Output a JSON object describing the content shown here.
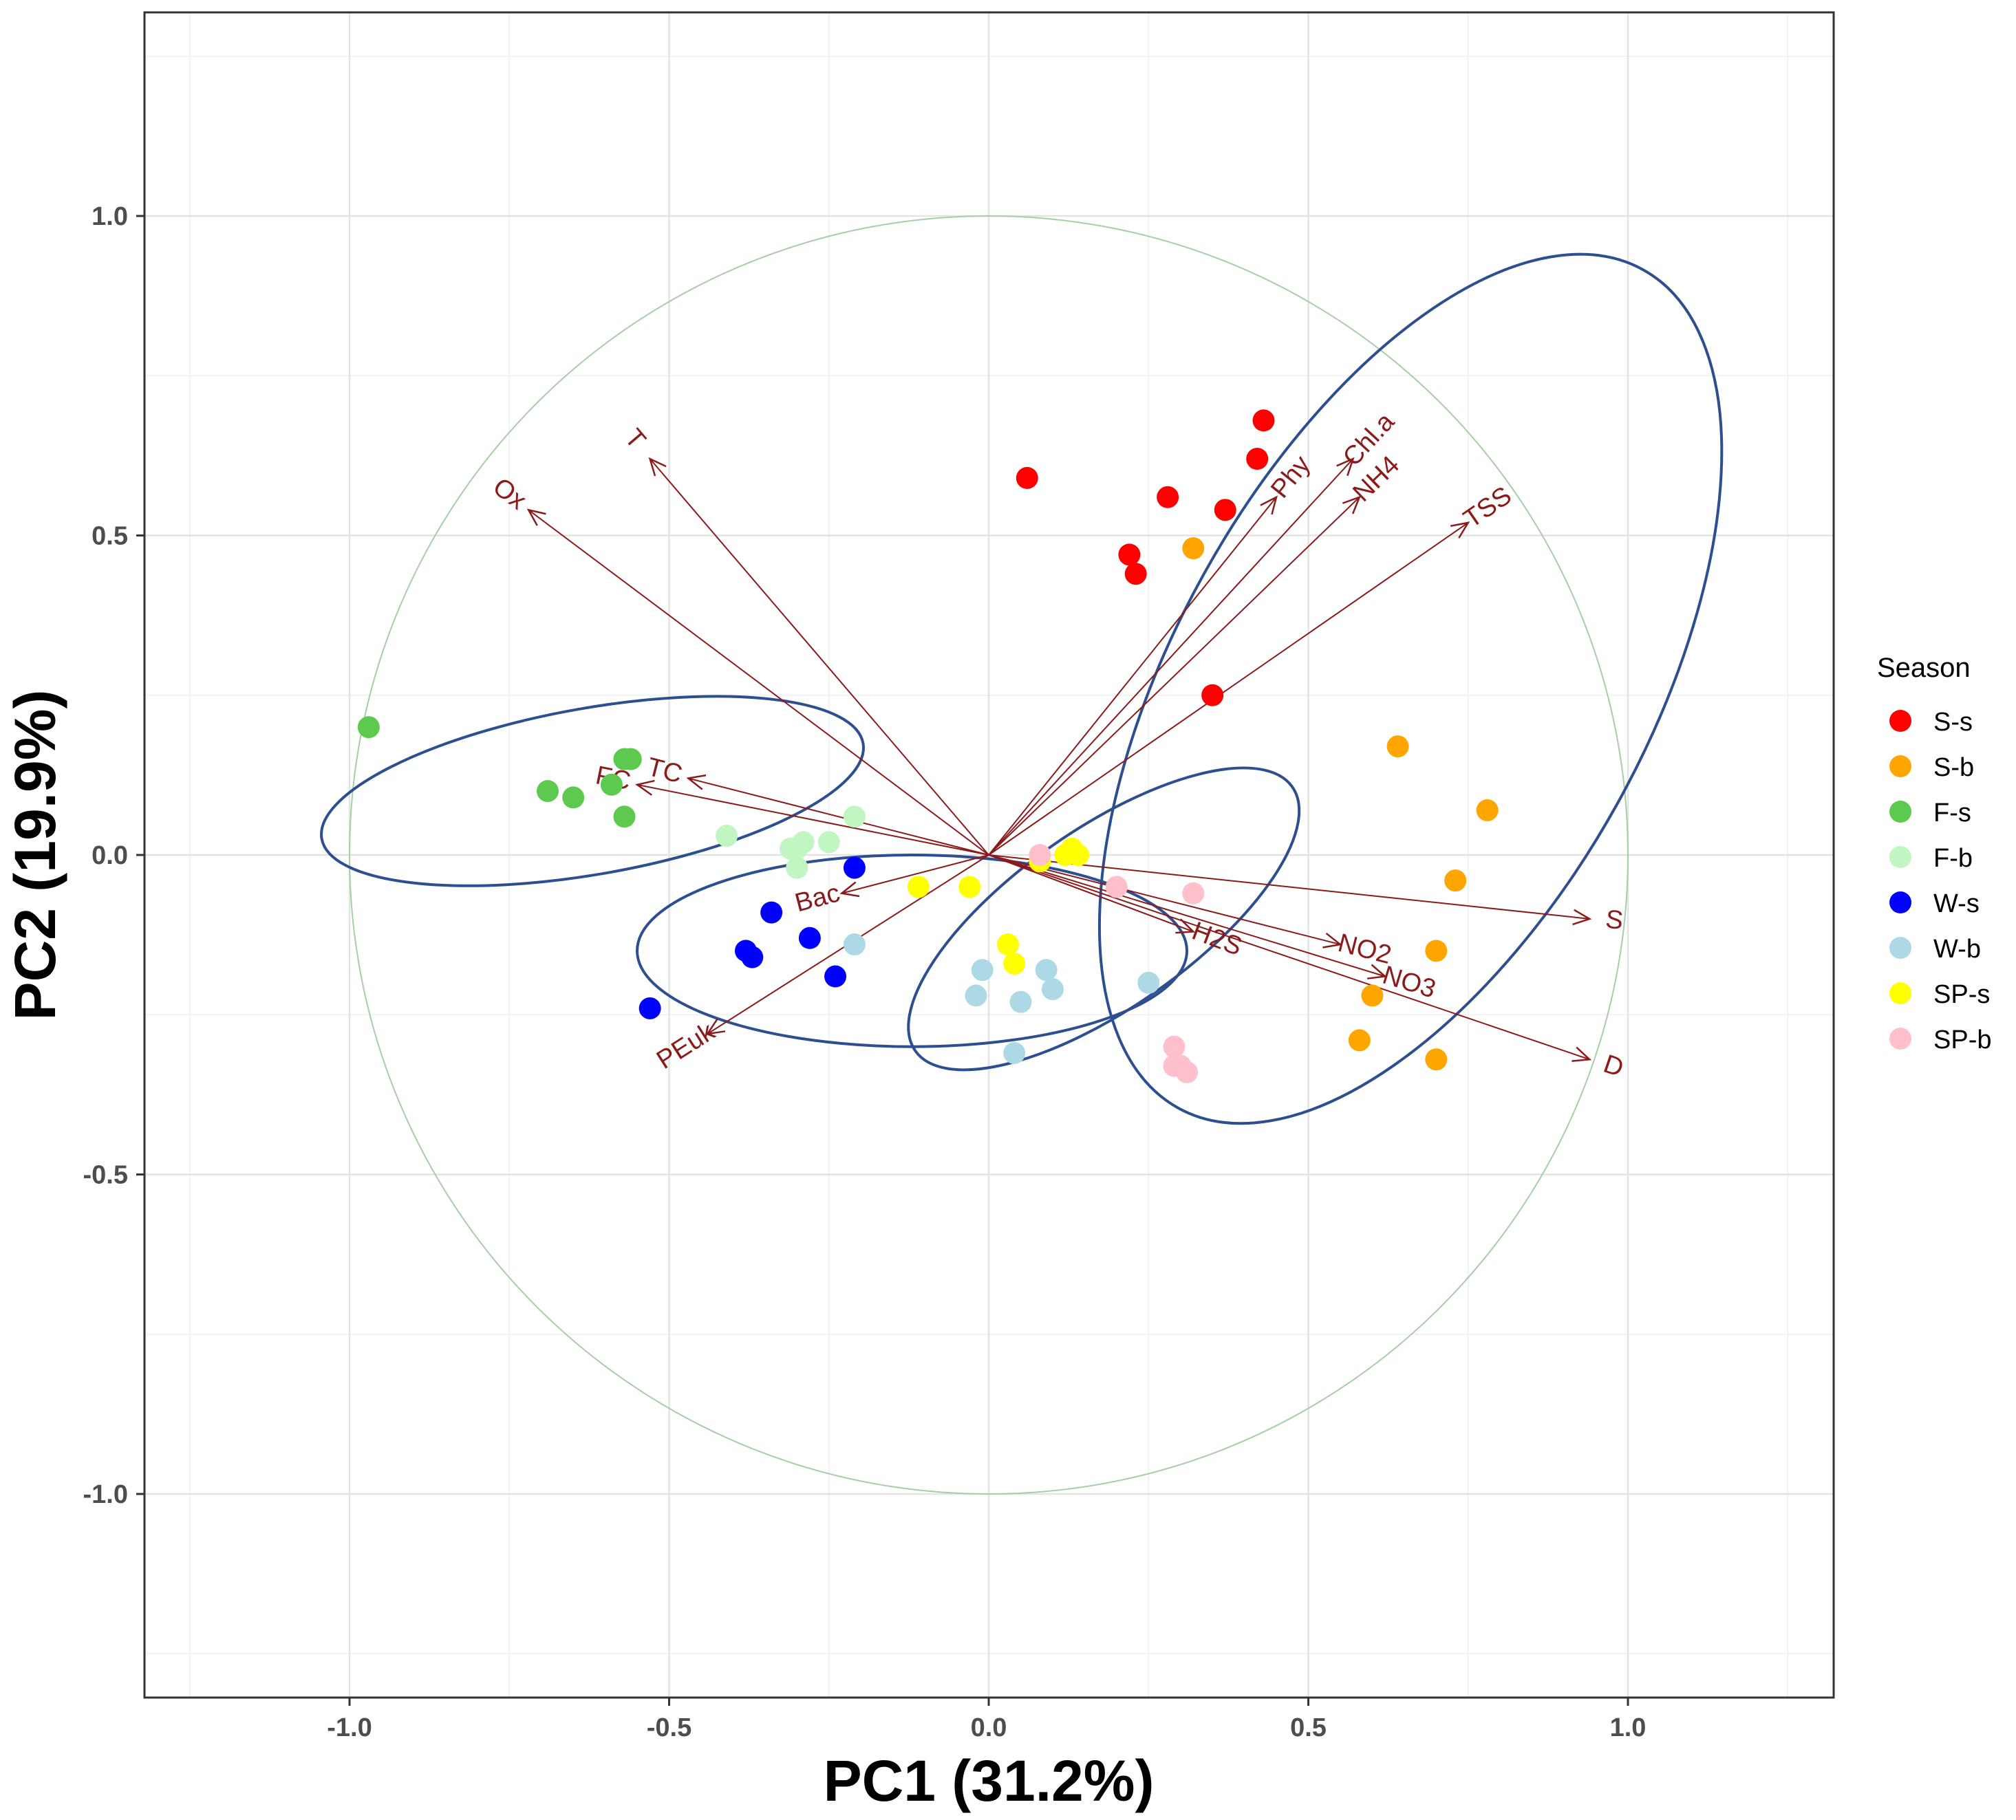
{
  "chart_data": {
    "type": "scatter",
    "subtype": "pca-biplot",
    "xlabel": "PC1 (31.2%)",
    "ylabel": "PC2 (19.9%)",
    "xlim": [
      -1.32,
      1.32
    ],
    "ylim": [
      -1.32,
      1.32
    ],
    "x_ticks": [
      -1.0,
      -0.5,
      0.0,
      0.5,
      1.0
    ],
    "y_ticks": [
      -1.0,
      -0.5,
      0.0,
      0.5,
      1.0
    ],
    "x_tick_labels": [
      "-1.0",
      "-0.5",
      "0.0",
      "0.5",
      "1.0"
    ],
    "y_tick_labels": [
      "-1.0",
      "-0.5",
      "0.0",
      "0.5",
      "1.0"
    ],
    "grid": true,
    "correlation_circle": {
      "radius": 1.0,
      "color": "#a6cfa6"
    },
    "legend": {
      "title": "Season",
      "position": "right",
      "entries": [
        {
          "label": "S-s",
          "color": "#ff0000"
        },
        {
          "label": "S-b",
          "color": "#ffa500"
        },
        {
          "label": "F-s",
          "color": "#5ec94f"
        },
        {
          "label": "F-b",
          "color": "#c1f5c1"
        },
        {
          "label": "W-s",
          "color": "#0000ff"
        },
        {
          "label": "W-b",
          "color": "#add8e6"
        },
        {
          "label": "SP-s",
          "color": "#ffff00"
        },
        {
          "label": "SP-b",
          "color": "#ffc0cb"
        }
      ]
    },
    "series": [
      {
        "name": "S-s",
        "color": "#ff0000",
        "points": [
          [
            0.06,
            0.59
          ],
          [
            0.28,
            0.56
          ],
          [
            0.37,
            0.54
          ],
          [
            0.42,
            0.62
          ],
          [
            0.43,
            0.68
          ],
          [
            0.22,
            0.47
          ],
          [
            0.23,
            0.44
          ],
          [
            0.35,
            0.25
          ]
        ]
      },
      {
        "name": "S-b",
        "color": "#ffa500",
        "points": [
          [
            0.32,
            0.48
          ],
          [
            0.64,
            0.17
          ],
          [
            0.78,
            0.07
          ],
          [
            0.73,
            -0.04
          ],
          [
            0.7,
            -0.15
          ],
          [
            0.6,
            -0.22
          ],
          [
            0.58,
            -0.29
          ],
          [
            0.7,
            -0.32
          ]
        ]
      },
      {
        "name": "F-s",
        "color": "#5ec94f",
        "points": [
          [
            -0.97,
            0.2
          ],
          [
            -0.69,
            0.1
          ],
          [
            -0.65,
            0.09
          ],
          [
            -0.59,
            0.11
          ],
          [
            -0.57,
            0.15
          ],
          [
            -0.56,
            0.15
          ],
          [
            -0.57,
            0.06
          ]
        ]
      },
      {
        "name": "F-b",
        "color": "#c1f5c1",
        "points": [
          [
            -0.41,
            0.03
          ],
          [
            -0.31,
            0.01
          ],
          [
            -0.3,
            0.01
          ],
          [
            -0.29,
            0.02
          ],
          [
            -0.25,
            0.02
          ],
          [
            -0.21,
            0.06
          ],
          [
            -0.3,
            -0.02
          ]
        ]
      },
      {
        "name": "W-s",
        "color": "#0000ff",
        "points": [
          [
            -0.21,
            -0.02
          ],
          [
            -0.34,
            -0.09
          ],
          [
            -0.38,
            -0.15
          ],
          [
            -0.37,
            -0.16
          ],
          [
            -0.28,
            -0.13
          ],
          [
            -0.24,
            -0.19
          ],
          [
            -0.53,
            -0.24
          ]
        ]
      },
      {
        "name": "W-b",
        "color": "#add8e6",
        "points": [
          [
            -0.21,
            -0.14
          ],
          [
            -0.01,
            -0.18
          ],
          [
            -0.02,
            -0.22
          ],
          [
            0.05,
            -0.23
          ],
          [
            0.09,
            -0.18
          ],
          [
            0.1,
            -0.21
          ],
          [
            0.04,
            -0.31
          ],
          [
            0.25,
            -0.2
          ]
        ]
      },
      {
        "name": "SP-s",
        "color": "#ffff00",
        "points": [
          [
            -0.11,
            -0.05
          ],
          [
            -0.03,
            -0.05
          ],
          [
            0.03,
            -0.14
          ],
          [
            0.04,
            -0.17
          ],
          [
            0.08,
            -0.01
          ],
          [
            0.12,
            0.0
          ],
          [
            0.13,
            0.01
          ],
          [
            0.14,
            0.0
          ]
        ]
      },
      {
        "name": "SP-b",
        "color": "#ffc0cb",
        "points": [
          [
            0.08,
            0.0
          ],
          [
            0.2,
            -0.05
          ],
          [
            0.32,
            -0.06
          ],
          [
            0.29,
            -0.3
          ],
          [
            0.29,
            -0.33
          ],
          [
            0.31,
            -0.34
          ],
          [
            0.3,
            -0.33
          ]
        ]
      }
    ],
    "arrows": [
      {
        "label": "T",
        "x": -0.53,
        "y": 0.62
      },
      {
        "label": "Ox",
        "x": -0.72,
        "y": 0.54
      },
      {
        "label": "TC",
        "x": -0.47,
        "y": 0.12
      },
      {
        "label": "FC",
        "x": -0.55,
        "y": 0.11
      },
      {
        "label": "Bac",
        "x": -0.23,
        "y": -0.06
      },
      {
        "label": "PEuk",
        "x": -0.44,
        "y": -0.28
      },
      {
        "label": "Phy",
        "x": 0.45,
        "y": 0.56
      },
      {
        "label": "Chl.a",
        "x": 0.57,
        "y": 0.62
      },
      {
        "label": "NH4",
        "x": 0.58,
        "y": 0.56
      },
      {
        "label": "TSS",
        "x": 0.75,
        "y": 0.52
      },
      {
        "label": "S",
        "x": 0.94,
        "y": -0.1
      },
      {
        "label": "H2S",
        "x": 0.32,
        "y": -0.12
      },
      {
        "label": "NO2",
        "x": 0.55,
        "y": -0.14
      },
      {
        "label": "NO3",
        "x": 0.62,
        "y": -0.19
      },
      {
        "label": "D",
        "x": 0.94,
        "y": -0.32
      }
    ],
    "ellipses": [
      {
        "group": "S",
        "cx": 0.66,
        "cy": 0.26,
        "rx": 0.75,
        "ry": 0.37,
        "angle": -61
      },
      {
        "group": "F",
        "cx": -0.62,
        "cy": 0.1,
        "rx": 0.43,
        "ry": 0.13,
        "angle": -10
      },
      {
        "group": "W",
        "cx": -0.12,
        "cy": -0.15,
        "rx": 0.43,
        "ry": 0.15,
        "angle": 0
      },
      {
        "group": "SP",
        "cx": 0.18,
        "cy": -0.1,
        "rx": 0.36,
        "ry": 0.14,
        "angle": -35
      }
    ]
  }
}
